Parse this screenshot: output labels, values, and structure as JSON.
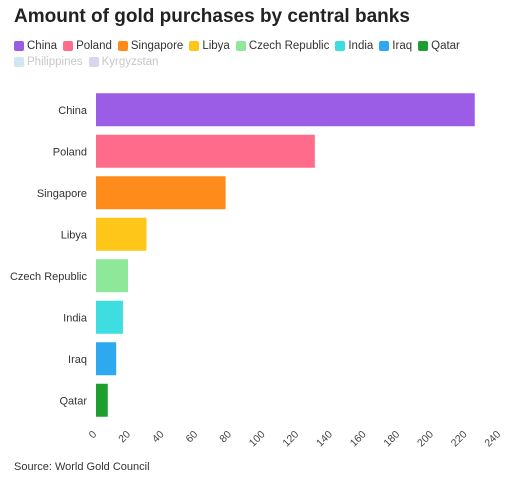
{
  "header": {
    "title": "Amount of gold purchases by central banks"
  },
  "footer": {
    "source": "Source: World Gold Council"
  },
  "legend": [
    {
      "label": "China",
      "color": "#9b5de5",
      "faded": false
    },
    {
      "label": "Poland",
      "color": "#ff6b8b",
      "faded": false
    },
    {
      "label": "Singapore",
      "color": "#ff8c1a",
      "faded": false
    },
    {
      "label": "Libya",
      "color": "#ffc61a",
      "faded": false
    },
    {
      "label": "Czech Republic",
      "color": "#8ee89a",
      "faded": false
    },
    {
      "label": "India",
      "color": "#3ddde0",
      "faded": false
    },
    {
      "label": "Iraq",
      "color": "#2ea8ee",
      "faded": false
    },
    {
      "label": "Qatar",
      "color": "#1e9e2e",
      "faded": false
    },
    {
      "label": "Philippines",
      "color": "#cde8ee",
      "faded": true
    },
    {
      "label": "Kyrgyzstan",
      "color": "#d9d4f2",
      "faded": true
    }
  ],
  "chart_data": {
    "type": "bar",
    "orientation": "horizontal",
    "title": "Amount of gold purchases by central banks",
    "xlabel": "",
    "ylabel": "",
    "categories": [
      "China",
      "Poland",
      "Singapore",
      "Libya",
      "Czech Republic",
      "India",
      "Iraq",
      "Qatar"
    ],
    "values": [
      225,
      130,
      77,
      30,
      19,
      16,
      12,
      7
    ],
    "colors": [
      "#9b5de5",
      "#ff6b8b",
      "#ff8c1a",
      "#ffc61a",
      "#8ee89a",
      "#3ddde0",
      "#2ea8ee",
      "#1e9e2e"
    ],
    "xlim": [
      0,
      240
    ],
    "xticks": [
      0,
      20,
      40,
      60,
      80,
      100,
      120,
      140,
      160,
      180,
      200,
      220,
      240
    ],
    "grid": false,
    "legend_position": "top"
  }
}
